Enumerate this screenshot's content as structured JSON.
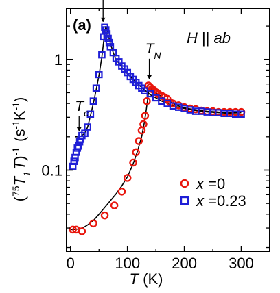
{
  "chart_data": {
    "type": "scatter",
    "panel_label": "(a)",
    "field_note": {
      "main": "H",
      "sep": " || ",
      "sub": "ab"
    },
    "xlabel": {
      "sym": "T",
      "unit": " (K)"
    },
    "ylabel": {
      "open": "(",
      "iso": "75",
      "sym1": "T",
      "sub1": "1",
      "sym2": "T",
      "close": ")",
      "pow": "-1",
      "unitopen": "(s",
      "unitpow1": "-1",
      "unitk": "K",
      "unitpow2": "-1",
      "unitclose": ")"
    },
    "xlim": [
      -7,
      350
    ],
    "ylim": [
      0.0185,
      2.9
    ],
    "yscale": "log",
    "x_ticks": [
      0,
      100,
      200,
      300
    ],
    "y_ticks": [
      {
        "value": 0.1,
        "label": "0.1"
      },
      {
        "value": 1,
        "label": "1"
      }
    ],
    "series": [
      {
        "name": "x =0",
        "legend_sym": "x",
        "legend_rest": " =0",
        "marker": "circle",
        "color": "#e8160d",
        "x": [
          4,
          10,
          20,
          40,
          60,
          77,
          90,
          100,
          110,
          115,
          120,
          125,
          128,
          131,
          134,
          137,
          140,
          143,
          146,
          149,
          152,
          155,
          160,
          165,
          170,
          175,
          180,
          190,
          200,
          210,
          220,
          230,
          240,
          250,
          260,
          270,
          280,
          290,
          300
        ],
        "y": [
          0.029,
          0.029,
          0.028,
          0.033,
          0.039,
          0.048,
          0.064,
          0.085,
          0.117,
          0.145,
          0.183,
          0.228,
          0.26,
          0.31,
          0.42,
          0.58,
          0.56,
          0.54,
          0.53,
          0.51,
          0.5,
          0.485,
          0.47,
          0.455,
          0.44,
          0.41,
          0.4,
          0.385,
          0.37,
          0.36,
          0.355,
          0.345,
          0.34,
          0.34,
          0.335,
          0.335,
          0.335,
          0.335,
          0.335
        ]
      },
      {
        "name": "x =0.23",
        "legend_sym": "x",
        "legend_rest": " =0.23",
        "marker": "square",
        "color": "#1f1fd6",
        "x": [
          4,
          6,
          8,
          10,
          12,
          14,
          16,
          18,
          20,
          25,
          30,
          35,
          40,
          45,
          50,
          55,
          58,
          60,
          62,
          64,
          66,
          68,
          70,
          75,
          80,
          85,
          90,
          95,
          100,
          105,
          110,
          115,
          120,
          125,
          130,
          140,
          150,
          160,
          170,
          180,
          190,
          200,
          210,
          220,
          230,
          240,
          250,
          260,
          270,
          280,
          290,
          300
        ],
        "y": [
          0.108,
          0.12,
          0.13,
          0.145,
          0.158,
          0.165,
          0.18,
          0.19,
          0.205,
          0.215,
          0.245,
          0.32,
          0.42,
          0.55,
          0.73,
          1.1,
          1.6,
          1.95,
          1.85,
          1.7,
          1.55,
          1.42,
          1.3,
          1.15,
          1.02,
          0.95,
          0.87,
          0.82,
          0.76,
          0.7,
          0.66,
          0.62,
          0.58,
          0.55,
          0.52,
          0.49,
          0.45,
          0.42,
          0.4,
          0.38,
          0.37,
          0.36,
          0.35,
          0.34,
          0.34,
          0.335,
          0.33,
          0.33,
          0.325,
          0.325,
          0.32,
          0.32
        ]
      }
    ],
    "fit_curves": [
      {
        "x": [
          0,
          10,
          20,
          30,
          40,
          50,
          60,
          70,
          80,
          90,
          100,
          110,
          118,
          125,
          130,
          133,
          136,
          138,
          140,
          150,
          160,
          170,
          180,
          190,
          200,
          220,
          240,
          260,
          280,
          300
        ],
        "y": [
          0.029,
          0.0292,
          0.0298,
          0.032,
          0.035,
          0.04,
          0.046,
          0.053,
          0.061,
          0.072,
          0.087,
          0.114,
          0.15,
          0.2,
          0.275,
          0.35,
          0.46,
          0.56,
          0.55,
          0.5,
          0.46,
          0.43,
          0.4,
          0.38,
          0.365,
          0.35,
          0.34,
          0.335,
          0.332,
          0.33
        ]
      },
      {
        "x": [
          8,
          15,
          20,
          25,
          30,
          35,
          40,
          45,
          50,
          55,
          60,
          62,
          65,
          70,
          75,
          80,
          90,
          100,
          110,
          120,
          130,
          140,
          150,
          160,
          180,
          200,
          220,
          240,
          260,
          280,
          300
        ],
        "y": [
          0.2,
          0.2,
          0.205,
          0.215,
          0.245,
          0.31,
          0.4,
          0.53,
          0.72,
          1.05,
          1.75,
          2.0,
          1.75,
          1.4,
          1.15,
          1.0,
          0.85,
          0.74,
          0.66,
          0.59,
          0.53,
          0.48,
          0.45,
          0.42,
          0.38,
          0.36,
          0.345,
          0.335,
          0.33,
          0.325,
          0.32
        ]
      }
    ],
    "annotations": [
      {
        "sym": "T",
        "sub": "N",
        "target": [
          62,
          1.95
        ]
      },
      {
        "sym": "T",
        "sub": "N",
        "target": [
          136,
          0.59
        ]
      },
      {
        "sym": "T",
        "sub": "c",
        "target": [
          15,
          0.2
        ]
      }
    ]
  }
}
